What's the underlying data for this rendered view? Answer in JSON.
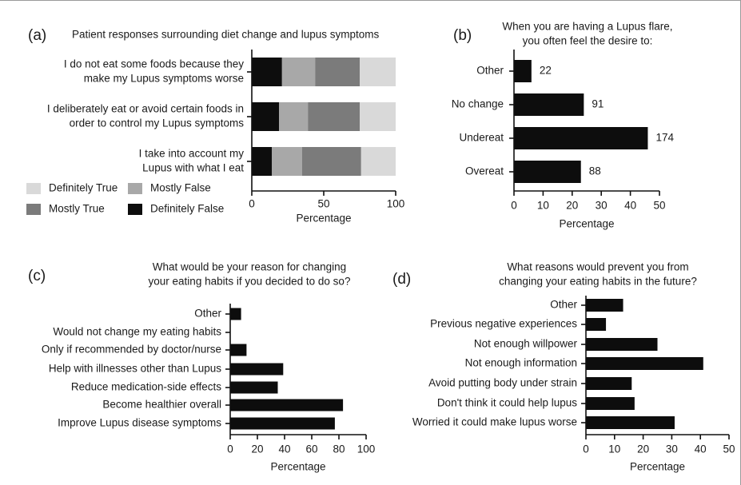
{
  "chart_data": [
    {
      "panel": "(a)",
      "type": "bar",
      "orientation": "horizontal",
      "stacked": true,
      "title": "Patient responses surrounding diet change and lupus symptoms",
      "categories": [
        "I do not eat some foods because they make my Lupus symptoms worse",
        "I deliberately eat or avoid certain foods in order to control my Lupus symptoms",
        "I take into account my Lupus with what I eat"
      ],
      "category_lines": [
        [
          "I do not eat some foods because they",
          "make my Lupus symptoms worse"
        ],
        [
          "I deliberately eat or avoid certain foods in",
          "order to control my Lupus symptoms"
        ],
        [
          "I take into account my",
          "Lupus with what I eat"
        ]
      ],
      "series": [
        {
          "name": "Definitely False",
          "color": "#0d0d0d",
          "values": [
            21,
            19,
            14
          ]
        },
        {
          "name": "Mostly False",
          "color": "#a8a8a8",
          "values": [
            23,
            20,
            21
          ]
        },
        {
          "name": "Mostly True",
          "color": "#7b7b7b",
          "values": [
            31,
            36,
            41
          ]
        },
        {
          "name": "Definitely True",
          "color": "#d9d9d9",
          "values": [
            25,
            25,
            24
          ]
        }
      ],
      "legend": [
        {
          "name": "Definitely True",
          "color": "#d9d9d9"
        },
        {
          "name": "Mostly False",
          "color": "#a8a8a8"
        },
        {
          "name": "Mostly True",
          "color": "#7b7b7b"
        },
        {
          "name": "Definitely False",
          "color": "#0d0d0d"
        }
      ],
      "legend_position": "bottom-left",
      "xlabel": "Percentage",
      "xlim": [
        0,
        100
      ],
      "xticks": [
        0,
        50,
        100
      ],
      "grid": false
    },
    {
      "panel": "(b)",
      "type": "bar",
      "orientation": "horizontal",
      "title_lines": [
        "When you are having a Lupus flare,",
        "you often feel the desire to:"
      ],
      "categories": [
        "Other",
        "No change",
        "Undereat",
        "Overeat"
      ],
      "values": [
        6,
        24,
        46,
        23
      ],
      "value_labels": [
        "22",
        "91",
        "174",
        "88"
      ],
      "color": "#0d0d0d",
      "xlabel": "Percentage",
      "xlim": [
        0,
        50
      ],
      "xticks": [
        0,
        10,
        20,
        30,
        40,
        50
      ],
      "grid": false
    },
    {
      "panel": "(c)",
      "type": "bar",
      "orientation": "horizontal",
      "title_lines": [
        "What would be your reason for changing",
        "your eating habits if you decided to do so?"
      ],
      "categories": [
        "Other",
        "Would not change my eating habits",
        "Only if recommended by doctor/nurse",
        "Help with illnesses other than Lupus",
        "Reduce medication-side effects",
        "Become healthier overall",
        "Improve Lupus disease symptoms"
      ],
      "values": [
        8,
        0,
        12,
        39,
        35,
        83,
        77
      ],
      "color": "#0d0d0d",
      "xlabel": "Percentage",
      "xlim": [
        0,
        100
      ],
      "xticks": [
        0,
        20,
        40,
        60,
        80,
        100
      ],
      "grid": false
    },
    {
      "panel": "(d)",
      "type": "bar",
      "orientation": "horizontal",
      "title_lines": [
        "What reasons would prevent you from",
        "changing your eating habits in the future?"
      ],
      "categories": [
        "Other",
        "Previous negative experiences",
        "Not enough willpower",
        "Not enough information",
        "Avoid putting body under strain",
        "Don't think it could help lupus",
        "Worried it could make lupus worse"
      ],
      "values": [
        13,
        7,
        25,
        41,
        16,
        17,
        31
      ],
      "color": "#0d0d0d",
      "xlabel": "Percentage",
      "xlim": [
        0,
        50
      ],
      "xticks": [
        0,
        10,
        20,
        30,
        40,
        50
      ],
      "grid": false
    }
  ]
}
